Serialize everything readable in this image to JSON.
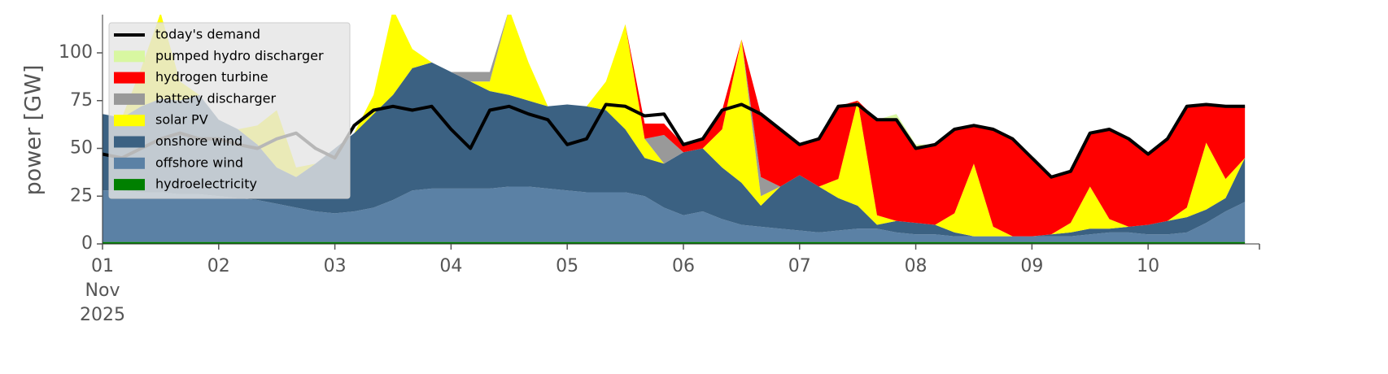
{
  "chart_data": {
    "type": "area",
    "ylabel": "power [GW]",
    "ylim": [
      0,
      120
    ],
    "yticks": [
      0,
      25,
      50,
      75,
      100
    ],
    "xlim": [
      "2025-11-01T00:00",
      "2025-11-10T23:00"
    ],
    "xticks": [
      {
        "value": "2025-11-01T00:00",
        "label": "01\nNov\n2025"
      },
      {
        "value": "2025-11-02T00:00",
        "label": "02"
      },
      {
        "value": "2025-11-03T00:00",
        "label": "03"
      },
      {
        "value": "2025-11-04T00:00",
        "label": "04"
      },
      {
        "value": "2025-11-05T00:00",
        "label": "05"
      },
      {
        "value": "2025-11-06T00:00",
        "label": "06"
      },
      {
        "value": "2025-11-07T00:00",
        "label": "07"
      },
      {
        "value": "2025-11-08T00:00",
        "label": "08"
      },
      {
        "value": "2025-11-09T00:00",
        "label": "09"
      },
      {
        "value": "2025-11-10T00:00",
        "label": "10"
      }
    ],
    "legend": "upper left",
    "x": [
      "2025-11-01T00:00",
      "2025-11-01T04:00",
      "2025-11-01T08:00",
      "2025-11-01T12:00",
      "2025-11-01T16:00",
      "2025-11-01T20:00",
      "2025-11-02T00:00",
      "2025-11-02T04:00",
      "2025-11-02T08:00",
      "2025-11-02T12:00",
      "2025-11-02T16:00",
      "2025-11-02T20:00",
      "2025-11-03T00:00",
      "2025-11-03T04:00",
      "2025-11-03T08:00",
      "2025-11-03T12:00",
      "2025-11-03T16:00",
      "2025-11-03T20:00",
      "2025-11-04T00:00",
      "2025-11-04T04:00",
      "2025-11-04T08:00",
      "2025-11-04T12:00",
      "2025-11-04T16:00",
      "2025-11-04T20:00",
      "2025-11-05T00:00",
      "2025-11-05T04:00",
      "2025-11-05T08:00",
      "2025-11-05T12:00",
      "2025-11-05T16:00",
      "2025-11-05T20:00",
      "2025-11-06T00:00",
      "2025-11-06T04:00",
      "2025-11-06T08:00",
      "2025-11-06T12:00",
      "2025-11-06T16:00",
      "2025-11-06T20:00",
      "2025-11-07T00:00",
      "2025-11-07T04:00",
      "2025-11-07T08:00",
      "2025-11-07T12:00",
      "2025-11-07T16:00",
      "2025-11-07T20:00",
      "2025-11-08T00:00",
      "2025-11-08T04:00",
      "2025-11-08T08:00",
      "2025-11-08T12:00",
      "2025-11-08T16:00",
      "2025-11-08T20:00",
      "2025-11-09T00:00",
      "2025-11-09T04:00",
      "2025-11-09T08:00",
      "2025-11-09T12:00",
      "2025-11-09T16:00",
      "2025-11-09T20:00",
      "2025-11-10T00:00",
      "2025-11-10T04:00",
      "2025-11-10T08:00",
      "2025-11-10T12:00",
      "2025-11-10T16:00",
      "2025-11-10T20:00"
    ],
    "series": [
      {
        "name": "today's demand",
        "color": "#000000",
        "style": "line",
        "values": [
          47,
          45,
          50,
          55,
          58,
          55,
          55,
          52,
          50,
          55,
          58,
          50,
          45,
          62,
          70,
          72,
          70,
          72,
          60,
          50,
          70,
          72,
          68,
          65,
          52,
          55,
          73,
          72,
          67,
          68,
          52,
          55,
          70,
          73,
          68,
          60,
          52,
          55,
          72,
          73,
          65,
          65,
          50,
          52,
          60,
          62,
          60,
          55,
          45,
          35,
          38,
          58,
          60,
          55,
          47,
          55,
          72,
          73,
          72,
          72
        ]
      },
      {
        "name": "pumped hydro discharger",
        "color": "#d8f7a1",
        "values": [
          0,
          0,
          0,
          0,
          0,
          0,
          0,
          0,
          0,
          0,
          0,
          0,
          0,
          0,
          0,
          0,
          0,
          0,
          0,
          0,
          0,
          0,
          0,
          0,
          0,
          0,
          0,
          0,
          0,
          0,
          0,
          0,
          0,
          0,
          0,
          0,
          0,
          0,
          0,
          0,
          0,
          3,
          2,
          0,
          0,
          0,
          0,
          0,
          0,
          0,
          0,
          0,
          0,
          0,
          0,
          0,
          0,
          0,
          0,
          0
        ]
      },
      {
        "name": "hydrogen turbine",
        "color": "#ff0000",
        "values": [
          0,
          0,
          0,
          0,
          0,
          0,
          0,
          0,
          0,
          0,
          0,
          0,
          0,
          0,
          0,
          0,
          0,
          0,
          0,
          0,
          0,
          0,
          0,
          0,
          0,
          0,
          0,
          0,
          8,
          6,
          4,
          5,
          10,
          0,
          33,
          30,
          16,
          25,
          38,
          0,
          50,
          53,
          39,
          42,
          44,
          20,
          51,
          51,
          41,
          30,
          27,
          28,
          47,
          46,
          37,
          43,
          53,
          20,
          38,
          27
        ]
      },
      {
        "name": "battery discharger",
        "color": "#999999",
        "values": [
          0,
          0,
          0,
          0,
          0,
          0,
          0,
          0,
          0,
          0,
          0,
          0,
          0,
          0,
          0,
          0,
          0,
          0,
          0,
          5,
          5,
          0,
          0,
          0,
          0,
          0,
          0,
          0,
          0,
          15,
          0,
          0,
          0,
          0,
          10,
          0,
          0,
          0,
          0,
          0,
          0,
          0,
          0,
          0,
          0,
          0,
          0,
          0,
          0,
          0,
          0,
          0,
          0,
          0,
          0,
          0,
          0,
          0,
          0,
          0
        ]
      },
      {
        "name": "solar PV",
        "color": "#ffff00",
        "values": [
          0,
          0,
          20,
          45,
          10,
          0,
          0,
          0,
          10,
          30,
          5,
          0,
          0,
          0,
          10,
          45,
          10,
          0,
          0,
          0,
          5,
          45,
          20,
          0,
          0,
          0,
          15,
          55,
          10,
          0,
          0,
          0,
          20,
          75,
          5,
          0,
          0,
          0,
          10,
          55,
          5,
          0,
          0,
          0,
          10,
          38,
          5,
          0,
          0,
          0,
          5,
          22,
          5,
          0,
          0,
          0,
          5,
          35,
          10,
          0
        ]
      },
      {
        "name": "onshore wind",
        "color": "#3b6182",
        "values": [
          40,
          38,
          45,
          49,
          49,
          52,
          40,
          36,
          29,
          19,
          16,
          25,
          34,
          41,
          49,
          55,
          64,
          66,
          61,
          56,
          51,
          48,
          45,
          43,
          45,
          45,
          43,
          33,
          20,
          23,
          33,
          33,
          27,
          22,
          11,
          22,
          29,
          24,
          17,
          12,
          2,
          6,
          6,
          5,
          2,
          0,
          0,
          0,
          0,
          1,
          2,
          3,
          2,
          3,
          5,
          7,
          8,
          7,
          7,
          23
        ]
      },
      {
        "name": "offshore wind",
        "color": "#5b81a5",
        "values": [
          27,
          27,
          26,
          26,
          25,
          25,
          24,
          23,
          22,
          20,
          18,
          16,
          15,
          16,
          18,
          22,
          27,
          28,
          28,
          28,
          28,
          29,
          29,
          28,
          27,
          26,
          26,
          26,
          24,
          18,
          14,
          16,
          12,
          9,
          8,
          7,
          6,
          5,
          6,
          7,
          7,
          5,
          4,
          4,
          3,
          3,
          3,
          3,
          3,
          3,
          3,
          4,
          5,
          5,
          4,
          4,
          5,
          10,
          16,
          21
        ]
      },
      {
        "name": "hydroelectricity",
        "color": "#008000",
        "values": [
          1,
          1,
          1,
          1,
          1,
          1,
          1,
          1,
          1,
          1,
          1,
          1,
          1,
          1,
          1,
          1,
          1,
          1,
          1,
          1,
          1,
          1,
          1,
          1,
          1,
          1,
          1,
          1,
          1,
          1,
          1,
          1,
          1,
          1,
          1,
          1,
          1,
          1,
          1,
          1,
          1,
          1,
          1,
          1,
          1,
          1,
          1,
          1,
          1,
          1,
          1,
          1,
          1,
          1,
          1,
          1,
          1,
          1,
          1,
          1
        ]
      }
    ]
  }
}
